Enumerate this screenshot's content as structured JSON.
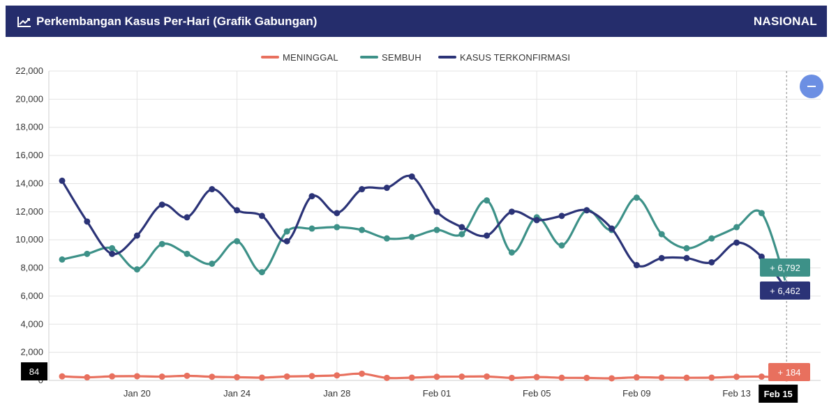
{
  "header": {
    "title": "Perkembangan Kasus Per-Hari (Grafik Gabungan)",
    "region": "NASIONAL",
    "icon": "line-chart-icon"
  },
  "controls": {
    "zoom_out_icon": "minus-icon"
  },
  "colors": {
    "header_bg": "#252d6c",
    "meninggal": "#e8705e",
    "sembuh": "#3d9188",
    "konfirmasi": "#2b3377"
  },
  "crosshair": {
    "x_label": "Feb 15",
    "y_label": "84"
  },
  "tooltips": {
    "sembuh": "+ 6,792",
    "konfirmasi": "+ 6,462",
    "meninggal": "+ 184"
  },
  "chart_data": {
    "type": "line",
    "title": "Perkembangan Kasus Per-Hari (Grafik Gabungan)",
    "legend_position": "top-center",
    "grid": true,
    "ylim": [
      0,
      22000
    ],
    "y_ticks": [
      0,
      2000,
      4000,
      6000,
      8000,
      10000,
      12000,
      14000,
      16000,
      18000,
      20000,
      22000
    ],
    "y_tick_labels": [
      "0",
      "2,000",
      "4,000",
      "6,000",
      "8,000",
      "10,000",
      "12,000",
      "14,000",
      "16,000",
      "18,000",
      "20,000",
      "22,000"
    ],
    "x_labels": [
      "Jan 20",
      "Jan 24",
      "Jan 28",
      "Feb 01",
      "Feb 05",
      "Feb 09",
      "Feb 13",
      "Feb 15"
    ],
    "x_label_days": [
      4,
      8,
      12,
      16,
      20,
      24,
      28,
      30
    ],
    "x_range": [
      0,
      30
    ],
    "series": [
      {
        "name": "MENINGGAL",
        "color": "#e8705e",
        "days": [
          1,
          2,
          3,
          4,
          5,
          6,
          7,
          8,
          9,
          10,
          11,
          12,
          13,
          14,
          15,
          16,
          17,
          18,
          19,
          20,
          21,
          22,
          23,
          24,
          25,
          26,
          27,
          28,
          29,
          30
        ],
        "values": [
          290,
          220,
          290,
          300,
          270,
          330,
          260,
          230,
          200,
          280,
          310,
          360,
          480,
          180,
          200,
          260,
          270,
          280,
          180,
          240,
          190,
          180,
          150,
          220,
          200,
          190,
          200,
          260,
          270,
          184
        ]
      },
      {
        "name": "SEMBUH",
        "color": "#3d9188",
        "days": [
          1,
          2,
          3,
          4,
          5,
          6,
          7,
          8,
          9,
          10,
          11,
          12,
          13,
          14,
          15,
          16,
          17,
          18,
          19,
          20,
          21,
          22,
          23,
          24,
          25,
          26,
          27,
          28,
          29,
          30
        ],
        "values": [
          8600,
          9000,
          9400,
          7900,
          9700,
          9000,
          8300,
          9900,
          7700,
          10600,
          10800,
          10900,
          10700,
          10100,
          10200,
          10700,
          10400,
          12800,
          9100,
          11600,
          9600,
          12100,
          10700,
          13000,
          10400,
          9400,
          10100,
          10900,
          11900,
          6792
        ]
      },
      {
        "name": "KASUS TERKONFIRMASI",
        "color": "#2b3377",
        "days": [
          1,
          2,
          3,
          4,
          5,
          6,
          7,
          8,
          9,
          10,
          11,
          12,
          13,
          14,
          15,
          16,
          17,
          18,
          19,
          20,
          21,
          22,
          23,
          24,
          25,
          26,
          27,
          28,
          29,
          30
        ],
        "values": [
          14200,
          11300,
          9000,
          10300,
          12500,
          11600,
          13600,
          12100,
          11700,
          9900,
          13100,
          11900,
          13600,
          13700,
          14500,
          12000,
          10900,
          10300,
          12000,
          11400,
          11700,
          12100,
          10800,
          8200,
          8700,
          8700,
          8400,
          9800,
          8800,
          6462
        ]
      }
    ]
  }
}
